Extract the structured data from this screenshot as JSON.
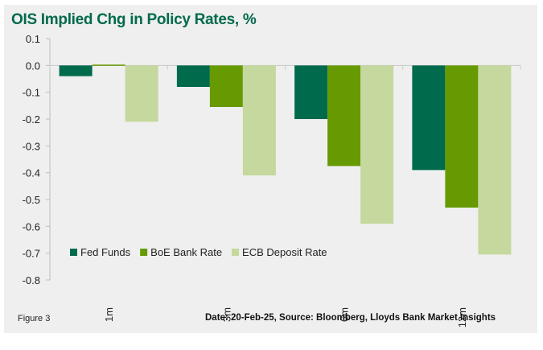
{
  "chart_data": {
    "type": "bar",
    "title": "OIS Implied Chg in Policy Rates, %",
    "xlabel": "",
    "ylabel": "",
    "categories": [
      "1m",
      "3m",
      "6m",
      "12m"
    ],
    "series": [
      {
        "name": "Fed Funds",
        "color": "#006a4d",
        "values": [
          -0.04,
          -0.08,
          -0.2,
          -0.39
        ]
      },
      {
        "name": "BoE Bank Rate",
        "color": "#669a00",
        "values": [
          0.003,
          -0.155,
          -0.375,
          -0.53
        ]
      },
      {
        "name": "ECB Deposit Rate",
        "color": "#c5d89d",
        "values": [
          -0.21,
          -0.41,
          -0.59,
          -0.705
        ]
      }
    ],
    "ylim": [
      -0.8,
      0.1
    ],
    "yticks": [
      "0.1",
      "0.0",
      "-0.1",
      "-0.2",
      "-0.3",
      "-0.4",
      "-0.5",
      "-0.6",
      "-0.7",
      "-0.8"
    ],
    "ytick_values": [
      0.1,
      0.0,
      -0.1,
      -0.2,
      -0.3,
      -0.4,
      -0.5,
      -0.6,
      -0.7,
      -0.8
    ],
    "grid": false,
    "legend_position": "bottom-left-inside",
    "category_label_rotation": "vertical"
  },
  "footer": {
    "figure_label": "Figure 3",
    "source_note": "Date: 20-Feb-25,  Source: Bloomberg, Lloyds Bank Market Insights"
  }
}
